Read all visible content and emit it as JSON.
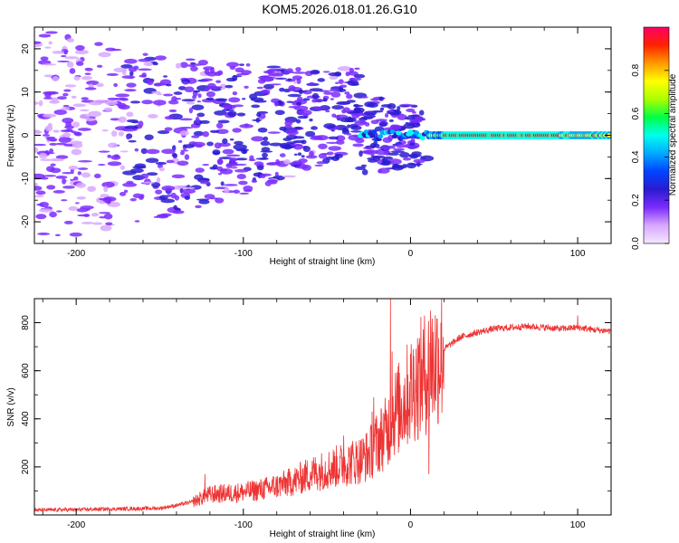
{
  "figure_title": "KOM5.2026.018.01.26.G10",
  "chart_data": [
    {
      "type": "heatmap",
      "title": "",
      "xlabel": "Height of straight line (km)",
      "ylabel": "Frequency (Hz)",
      "xlim": [
        -225,
        120
      ],
      "ylim": [
        -25,
        25
      ],
      "xticks": [
        -200,
        -100,
        0,
        100
      ],
      "yticks": [
        -20,
        -10,
        0,
        10,
        20
      ],
      "colorbar": {
        "label": "Normalized spectral amplitude",
        "range": [
          0,
          1
        ],
        "ticks": [
          0.0,
          0.2,
          0.4,
          0.6,
          0.8
        ],
        "colors": [
          "#f4e8ff",
          "#d8a8ff",
          "#7b2bff",
          "#2a1bd0",
          "#0044ff",
          "#00aaff",
          "#00ffee",
          "#00ff44",
          "#aaff00",
          "#ffff00",
          "#ff9900",
          "#ff2200",
          "#ff0066"
        ]
      },
      "features": {
        "dominant_line": {
          "x_start": 10,
          "x_end": 120,
          "frequency": 0,
          "amplitude": 0.95,
          "green_band_x": [
            20,
            90
          ]
        },
        "cloud": {
          "x_start": -225,
          "x_end": 10,
          "frequency_spread_hz": [
            -25,
            25
          ],
          "typical_amplitude": 0.2
        }
      }
    },
    {
      "type": "line",
      "title": "",
      "xlabel": "Height of straight line (km)",
      "ylabel": "SNR (v/v)",
      "xlim": [
        -225,
        120
      ],
      "ylim": [
        0,
        900
      ],
      "xticks": [
        -200,
        -100,
        0,
        100
      ],
      "yticks": [
        200,
        400,
        600,
        800
      ],
      "series": [
        {
          "name": "SNR",
          "color": "#ee3333",
          "x": [
            -225,
            -200,
            -175,
            -150,
            -140,
            -130,
            -125,
            -120,
            -110,
            -100,
            -90,
            -80,
            -70,
            -60,
            -50,
            -40,
            -30,
            -25,
            -20,
            -15,
            -12,
            -10,
            -5,
            0,
            5,
            10,
            15,
            20,
            30,
            40,
            50,
            60,
            70,
            80,
            90,
            100,
            110,
            120
          ],
          "values": [
            20,
            22,
            25,
            28,
            40,
            55,
            70,
            85,
            90,
            95,
            105,
            120,
            140,
            170,
            190,
            210,
            230,
            250,
            300,
            340,
            380,
            420,
            460,
            520,
            560,
            600,
            640,
            690,
            740,
            760,
            775,
            780,
            785,
            780,
            775,
            780,
            770,
            765
          ],
          "spikes": [
            {
              "x": -123,
              "value": 170
            },
            {
              "x": -40,
              "value": 330
            },
            {
              "x": -23,
              "value": 430
            },
            {
              "x": -22,
              "value": 490
            },
            {
              "x": -12,
              "value": 900
            },
            {
              "x": -11,
              "value": 680
            },
            {
              "x": 12,
              "value": 850
            },
            {
              "x": 11,
              "value": 170
            },
            {
              "x": 100,
              "value": 830
            }
          ]
        }
      ]
    }
  ]
}
